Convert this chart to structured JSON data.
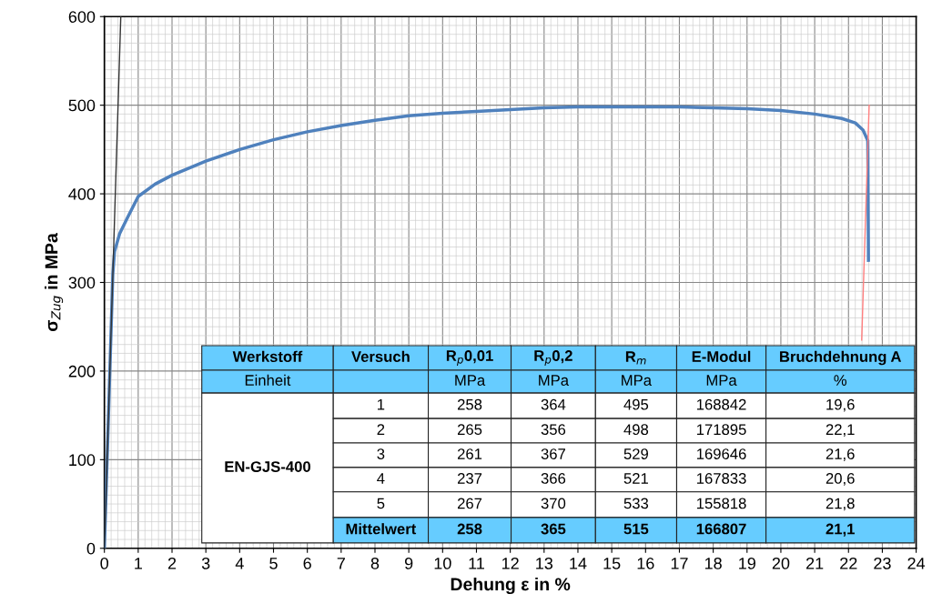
{
  "chart_data": {
    "type": "line",
    "xlabel": "Dehung ε in %",
    "ylabel": "σ$_{Zug}$ in MPa",
    "xlim": [
      0,
      24
    ],
    "ylim": [
      0,
      600
    ],
    "xticks": [
      0,
      1,
      2,
      3,
      4,
      5,
      6,
      7,
      8,
      9,
      10,
      11,
      12,
      13,
      14,
      15,
      16,
      17,
      18,
      19,
      20,
      21,
      22,
      23,
      24
    ],
    "yticks": [
      0,
      100,
      200,
      300,
      400,
      500,
      600
    ],
    "grid": true,
    "legend": false,
    "marker": "none",
    "line_style": "solid",
    "series": [
      {
        "color": "#333333",
        "x": [
          0,
          0.485
        ],
        "values": [
          0,
          600
        ]
      },
      {
        "color": "#ff7f7f",
        "x": [
          22.39,
          22.61
        ],
        "values": [
          235,
          500
        ]
      },
      {
        "color": "#4f81bd",
        "x": [
          0,
          0.25,
          0.3,
          0.45,
          0.67,
          1,
          1.5,
          2,
          3,
          4,
          5,
          6,
          7,
          8,
          9,
          10,
          11,
          12,
          13,
          14,
          15,
          16,
          17,
          18,
          19,
          20,
          21,
          21.8,
          22.2,
          22.43,
          22.57,
          22.58,
          22.59
        ],
        "values": [
          0,
          310,
          335,
          355,
          372,
          397,
          411,
          421,
          437,
          450,
          461,
          470,
          477,
          483,
          488,
          491,
          493,
          495,
          497,
          498,
          498,
          498,
          498,
          497,
          496,
          494,
          490,
          485,
          480,
          472,
          460,
          400,
          325
        ]
      }
    ],
    "annotations": [
      "Werkstoff",
      "Versuch",
      "R$_{p}$0,01",
      "R$_{p}$0,2",
      "R$_{m}$",
      "E-Modul",
      "Bruchdehnung A",
      "Einheit",
      "MPa",
      "MPa",
      "MPa",
      "MPa",
      "%",
      "EN-GJS-400",
      "1",
      "258",
      "364",
      "495",
      "168842",
      "19,6",
      "2",
      "265",
      "356",
      "498",
      "171895",
      "22,1",
      "3",
      "261",
      "367",
      "529",
      "169646",
      "21,6",
      "4",
      "237",
      "366",
      "521",
      "167833",
      "20,6",
      "5",
      "267",
      "370",
      "533",
      "155818",
      "21,8",
      "Mittelwert",
      "258",
      "365",
      "515",
      "166807",
      "21,1"
    ]
  }
}
